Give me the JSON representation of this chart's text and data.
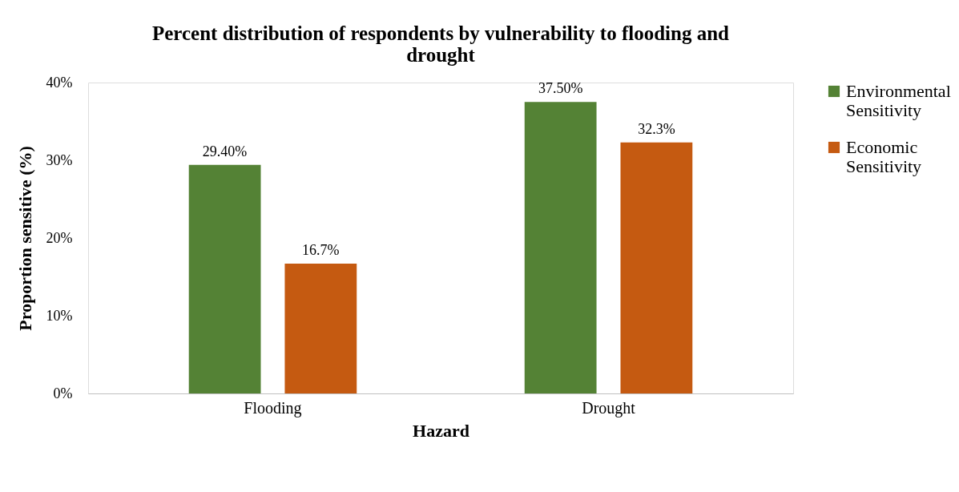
{
  "chart_data": {
    "type": "bar",
    "title": "Percent distribution of respondents by vulnerability to flooding and drought",
    "xlabel": "Hazard",
    "ylabel": "Proportion sensitive (%)",
    "categories": [
      "Flooding",
      "Drought"
    ],
    "series": [
      {
        "name": "Environmental Sensitivity",
        "color": "#548235",
        "values": [
          29.4,
          37.5
        ],
        "value_labels": [
          "29.40%",
          "37.50%"
        ]
      },
      {
        "name": "Economic Sensitivity",
        "color": "#c55a11",
        "values": [
          16.7,
          32.3
        ],
        "value_labels": [
          "16.7%",
          "32.3%"
        ]
      }
    ],
    "ylim": [
      0,
      40
    ],
    "yticks": [
      {
        "value": 0,
        "label": "0%"
      },
      {
        "value": 10,
        "label": "10%"
      },
      {
        "value": 20,
        "label": "20%"
      },
      {
        "value": 30,
        "label": "30%"
      },
      {
        "value": 40,
        "label": "40%"
      }
    ],
    "grid": false,
    "legend": "right"
  }
}
